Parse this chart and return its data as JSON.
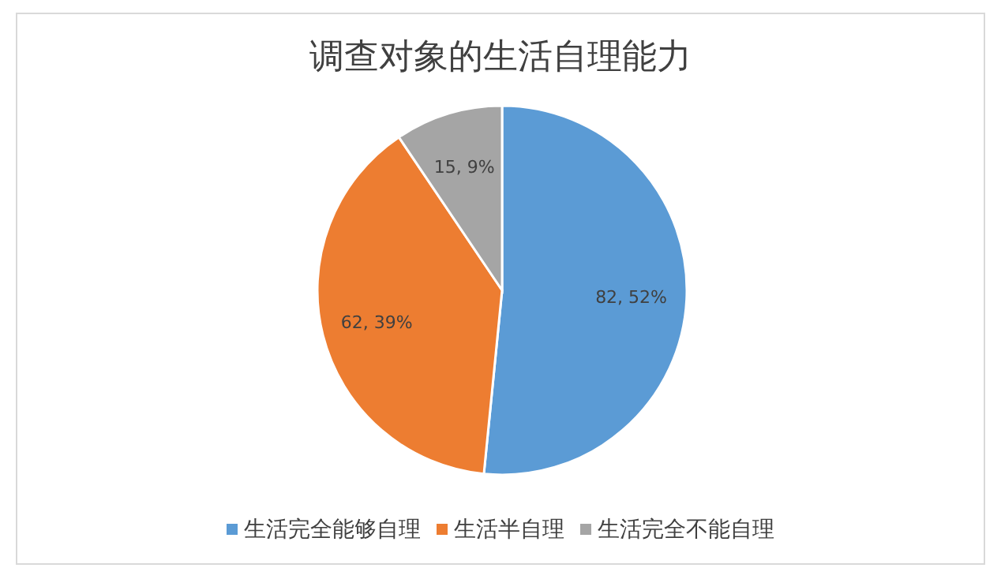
{
  "chart_data": {
    "type": "pie",
    "title": "调查对象的生活自理能力",
    "categories": [
      "生活完全能够自理",
      "生活半自理",
      "生活完全不能自理"
    ],
    "values": [
      82,
      62,
      15
    ],
    "colors": [
      "#5b9bd5",
      "#ed7d31",
      "#a5a5a5"
    ],
    "value_labels": [
      "82, 52%",
      "62, 39%",
      "15, 9%"
    ],
    "legend": "bottom"
  }
}
